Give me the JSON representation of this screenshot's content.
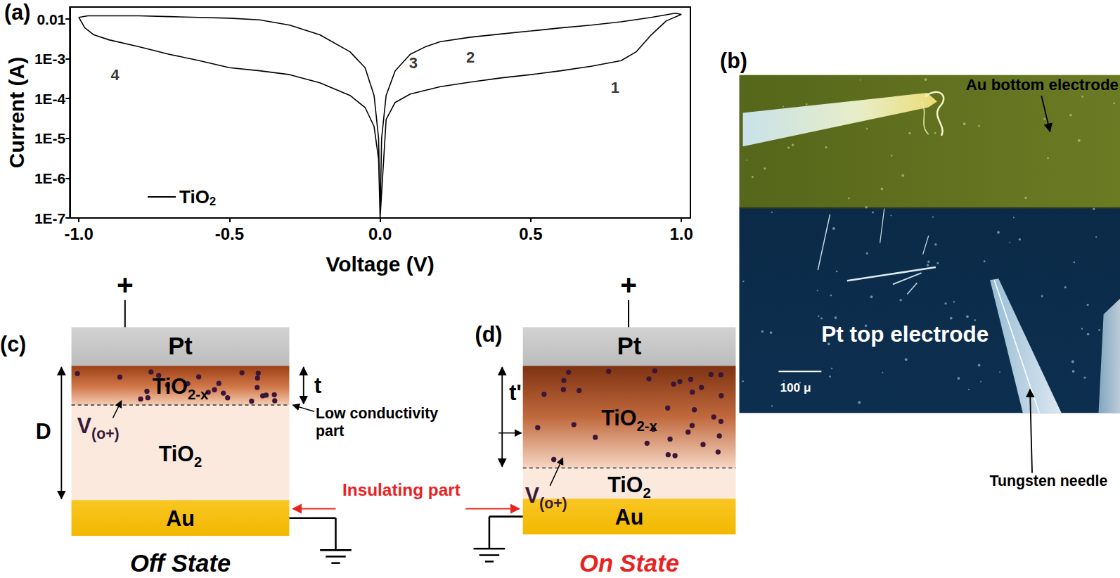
{
  "chart_data": {
    "type": "line",
    "x_label": "Voltage (V)",
    "y_label": "Current (A)",
    "log": "y",
    "grid": false,
    "legend": "lower left",
    "xlim": [
      -1.03,
      1.03
    ],
    "xticks": [
      {
        "value": -1,
        "label": "-1.0"
      },
      {
        "value": -0.5,
        "label": "-0.5"
      },
      {
        "value": 0,
        "label": "0.0"
      },
      {
        "value": 0.5,
        "label": "0.5"
      },
      {
        "value": 1,
        "label": "1.0"
      }
    ],
    "ylim": [
      1e-07,
      0.02
    ],
    "yticks": [
      {
        "value": 1e-07,
        "label": "1E-7"
      },
      {
        "value": 1e-06,
        "label": "1E-6"
      },
      {
        "value": 1e-05,
        "label": "1E-5"
      },
      {
        "value": 0.0001,
        "label": "1E-4"
      },
      {
        "value": 0.001,
        "label": "1E-3"
      },
      0.01
    ],
    "x": [
      0,
      0.02,
      0.05,
      0.1,
      0.2,
      0.3,
      0.4,
      0.5,
      0.6,
      0.7,
      0.8,
      0.85,
      0.9,
      0.95,
      1.0,
      0.98,
      0.9,
      0.8,
      0.7,
      0.6,
      0.5,
      0.4,
      0.3,
      0.2,
      0.15,
      0.1,
      0.05,
      0.02,
      0.005,
      0,
      -0.005,
      -0.02,
      -0.05,
      -0.1,
      -0.2,
      -0.3,
      -0.4,
      -0.5,
      -0.6,
      -0.7,
      -0.8,
      -0.9,
      -0.97,
      -1.0,
      -0.98,
      -0.95,
      -0.9,
      -0.8,
      -0.7,
      -0.6,
      -0.5,
      -0.4,
      -0.3,
      -0.2,
      -0.1,
      -0.05,
      -0.02,
      -0.005,
      0
    ],
    "series": [
      {
        "name": "TiO2",
        "color": "#000000",
        "line_style": "solid",
        "values": [
          1e-07,
          3e-05,
          8e-05,
          0.00013,
          0.0002,
          0.00026,
          0.00033,
          0.0004,
          0.0005,
          0.00065,
          0.0009,
          0.0015,
          0.004,
          0.009,
          0.013,
          0.014,
          0.011,
          0.0085,
          0.007,
          0.006,
          0.005,
          0.0042,
          0.0035,
          0.0027,
          0.002,
          0.0013,
          0.0005,
          0.00012,
          1e-05,
          1e-07,
          1e-05,
          0.00012,
          0.0006,
          0.0015,
          0.004,
          0.007,
          0.0095,
          0.0105,
          0.011,
          0.0115,
          0.012,
          0.012,
          0.012,
          0.011,
          0.006,
          0.004,
          0.003,
          0.002,
          0.0013,
          0.0009,
          0.0006,
          0.0005,
          0.0004,
          0.00025,
          0.00012,
          6e-05,
          2e-05,
          3e-06,
          1e-07
        ]
      }
    ],
    "annotations": [
      {
        "text": "1",
        "x": 0.78,
        "y": 0.00019
      },
      {
        "text": "2",
        "x": 0.3,
        "y": 0.0011
      },
      {
        "text": "3",
        "x": 0.11,
        "y": 0.00078
      },
      {
        "text": "4",
        "x": -0.88,
        "y": 0.0004
      }
    ]
  },
  "figure": {
    "panels": {
      "a": {
        "label": "(a)"
      },
      "b": {
        "label": "(b)",
        "bottom_electrode": "Au bottom electrode",
        "top_electrode": "Pt top electrode",
        "needle": "Tungsten needle",
        "scale_bar": "100 μ"
      },
      "c": {
        "label": "(c)",
        "polarity": "+",
        "layers": [
          "Pt",
          "TiO2-x",
          "TiO2",
          "Au"
        ],
        "thickness_label": "t",
        "total_label": "D",
        "vacancy_label": "V(o+)",
        "state": "Off State"
      },
      "d": {
        "label": "(d)",
        "polarity": "+",
        "layers": [
          "Pt",
          "TiO2-x",
          "TiO2",
          "Au"
        ],
        "thickness_label": "t'",
        "vacancy_label": "V(o+)",
        "state": "On State"
      }
    },
    "low_conductivity": "Low conductivity part",
    "insulating": "Insulating part"
  }
}
